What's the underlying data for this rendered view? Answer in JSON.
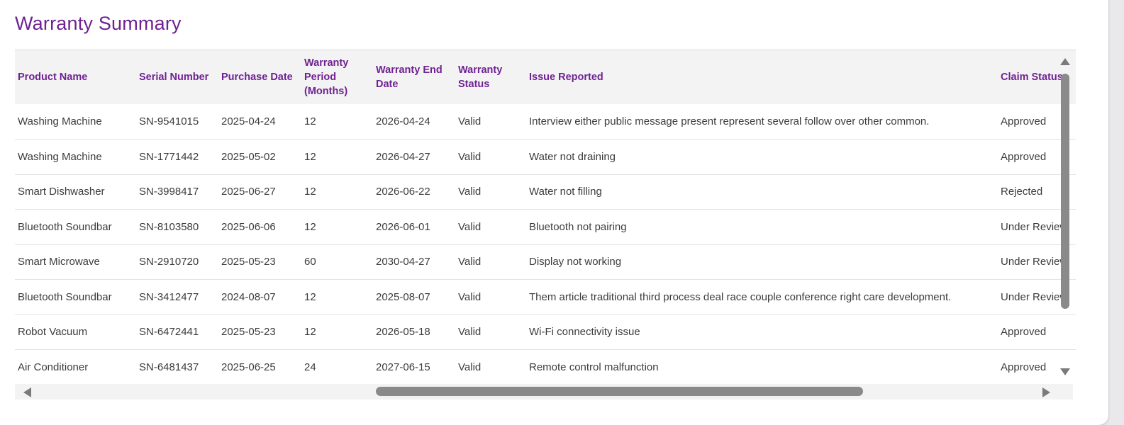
{
  "title": "Warranty Summary",
  "table": {
    "headers": [
      "Product Name",
      "Serial Number",
      "Purchase Date",
      "Warranty Period (Months)",
      "Warranty End Date",
      "Warranty Status",
      "Issue Reported",
      "Claim Status"
    ],
    "rows": [
      [
        "Washing Machine",
        "SN-9541015",
        "2025-04-24",
        "12",
        "2026-04-24",
        "Valid",
        "Interview either public message present represent several follow over other common.",
        "Approved"
      ],
      [
        "Washing Machine",
        "SN-1771442",
        "2025-05-02",
        "12",
        "2026-04-27",
        "Valid",
        "Water not draining",
        "Approved"
      ],
      [
        "Smart Dishwasher",
        "SN-3998417",
        "2025-06-27",
        "12",
        "2026-06-22",
        "Valid",
        "Water not filling",
        "Rejected"
      ],
      [
        "Bluetooth Soundbar",
        "SN-8103580",
        "2025-06-06",
        "12",
        "2026-06-01",
        "Valid",
        "Bluetooth not pairing",
        "Under Review"
      ],
      [
        "Smart Microwave",
        "SN-2910720",
        "2025-05-23",
        "60",
        "2030-04-27",
        "Valid",
        "Display not working",
        "Under Review"
      ],
      [
        "Bluetooth Soundbar",
        "SN-3412477",
        "2024-08-07",
        "12",
        "2025-08-07",
        "Valid",
        "Them article traditional third process deal race couple conference right care development.",
        "Under Review"
      ],
      [
        "Robot Vacuum",
        "SN-6472441",
        "2025-05-23",
        "12",
        "2026-05-18",
        "Valid",
        "Wi-Fi connectivity issue",
        "Approved"
      ],
      [
        "Air Conditioner",
        "SN-6481437",
        "2025-06-25",
        "24",
        "2027-06-15",
        "Valid",
        "Remote control malfunction",
        "Approved"
      ]
    ]
  },
  "colors": {
    "accent": "#6f2291",
    "header_bg": "#f3f3f4",
    "scrollbar_thumb": "#8a8a8a"
  },
  "icons": {
    "scroll_up": "triangle-up-icon",
    "scroll_down": "triangle-down-icon",
    "scroll_left": "triangle-left-icon",
    "scroll_right": "triangle-right-icon"
  }
}
